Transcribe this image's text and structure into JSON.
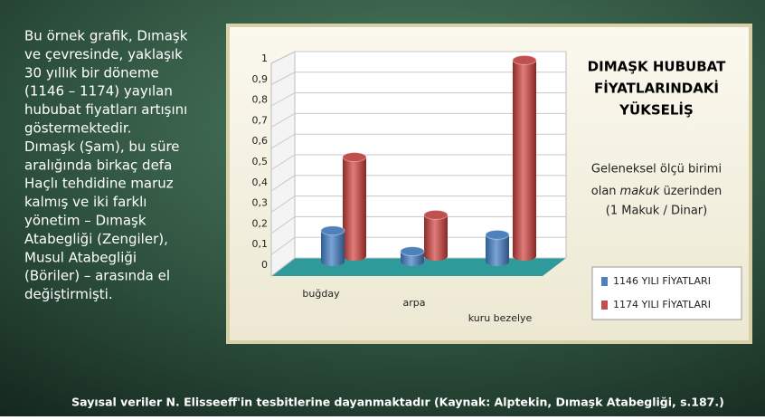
{
  "slide": {
    "text_lines": [
      "Bu örnek grafik, Dımaşk",
      "ve çevresinde, yaklaşık",
      "30 yıllık bir döneme",
      "(1146 – 1174) yayılan",
      "hububat fiyatları artışını",
      "göstermektedir.",
      "Dımaşk (Şam), bu süre",
      "aralığında birkaç defa",
      "Haçlı tehdidine maruz",
      "kalmış ve iki farklı",
      "yönetim – Dımaşk",
      "Atabegliği (Zengiler),",
      "Musul Atabegliği",
      "(Böriler) – arasında el",
      "değiştirmişti."
    ],
    "footer": "Sayısal veriler N. Elisseeff'in tesbitlerine dayanmaktadır (Kaynak: Alptekin, Dımaşk Atabegliği, s.187.)"
  },
  "chart_data": {
    "type": "bar3d",
    "title": [
      "DIMAŞK HUBUBAT",
      "FİYATLARINDAKİ",
      "YÜKSELİŞ"
    ],
    "subtitle": {
      "line1": "Geleneksel ölçü birimi",
      "line2_start": "olan",
      "line2_italic": "makuk",
      "line2_end": "üzerinden",
      "line3": "(1 Makuk / Dinar)"
    },
    "categories": [
      "buğday",
      "arpa",
      "kuru bezelye"
    ],
    "series": [
      {
        "name": "1146 YILI FİYATLARI",
        "color": "#4f81bd",
        "values": [
          0.15,
          0.05,
          0.13
        ]
      },
      {
        "name": "1174 YILI FİYATLARI",
        "color": "#c0504d",
        "values": [
          0.48,
          0.2,
          0.95
        ]
      }
    ],
    "ylim": [
      0,
      1
    ],
    "yticks": [
      0,
      {
        "value": 0.1,
        "label": "0,1"
      },
      {
        "value": 0.2,
        "label": "0,2"
      },
      {
        "value": 0.3,
        "label": "0,3"
      },
      {
        "value": 0.4,
        "label": "0,4"
      },
      {
        "value": 0.5,
        "label": "0,5"
      },
      {
        "value": 0.6,
        "label": "0,6"
      },
      {
        "value": 0.7,
        "label": "0,7"
      },
      {
        "value": 0.8,
        "label": "0,8"
      },
      {
        "value": 0.9,
        "label": "0,9"
      },
      1
    ],
    "grid": true
  }
}
